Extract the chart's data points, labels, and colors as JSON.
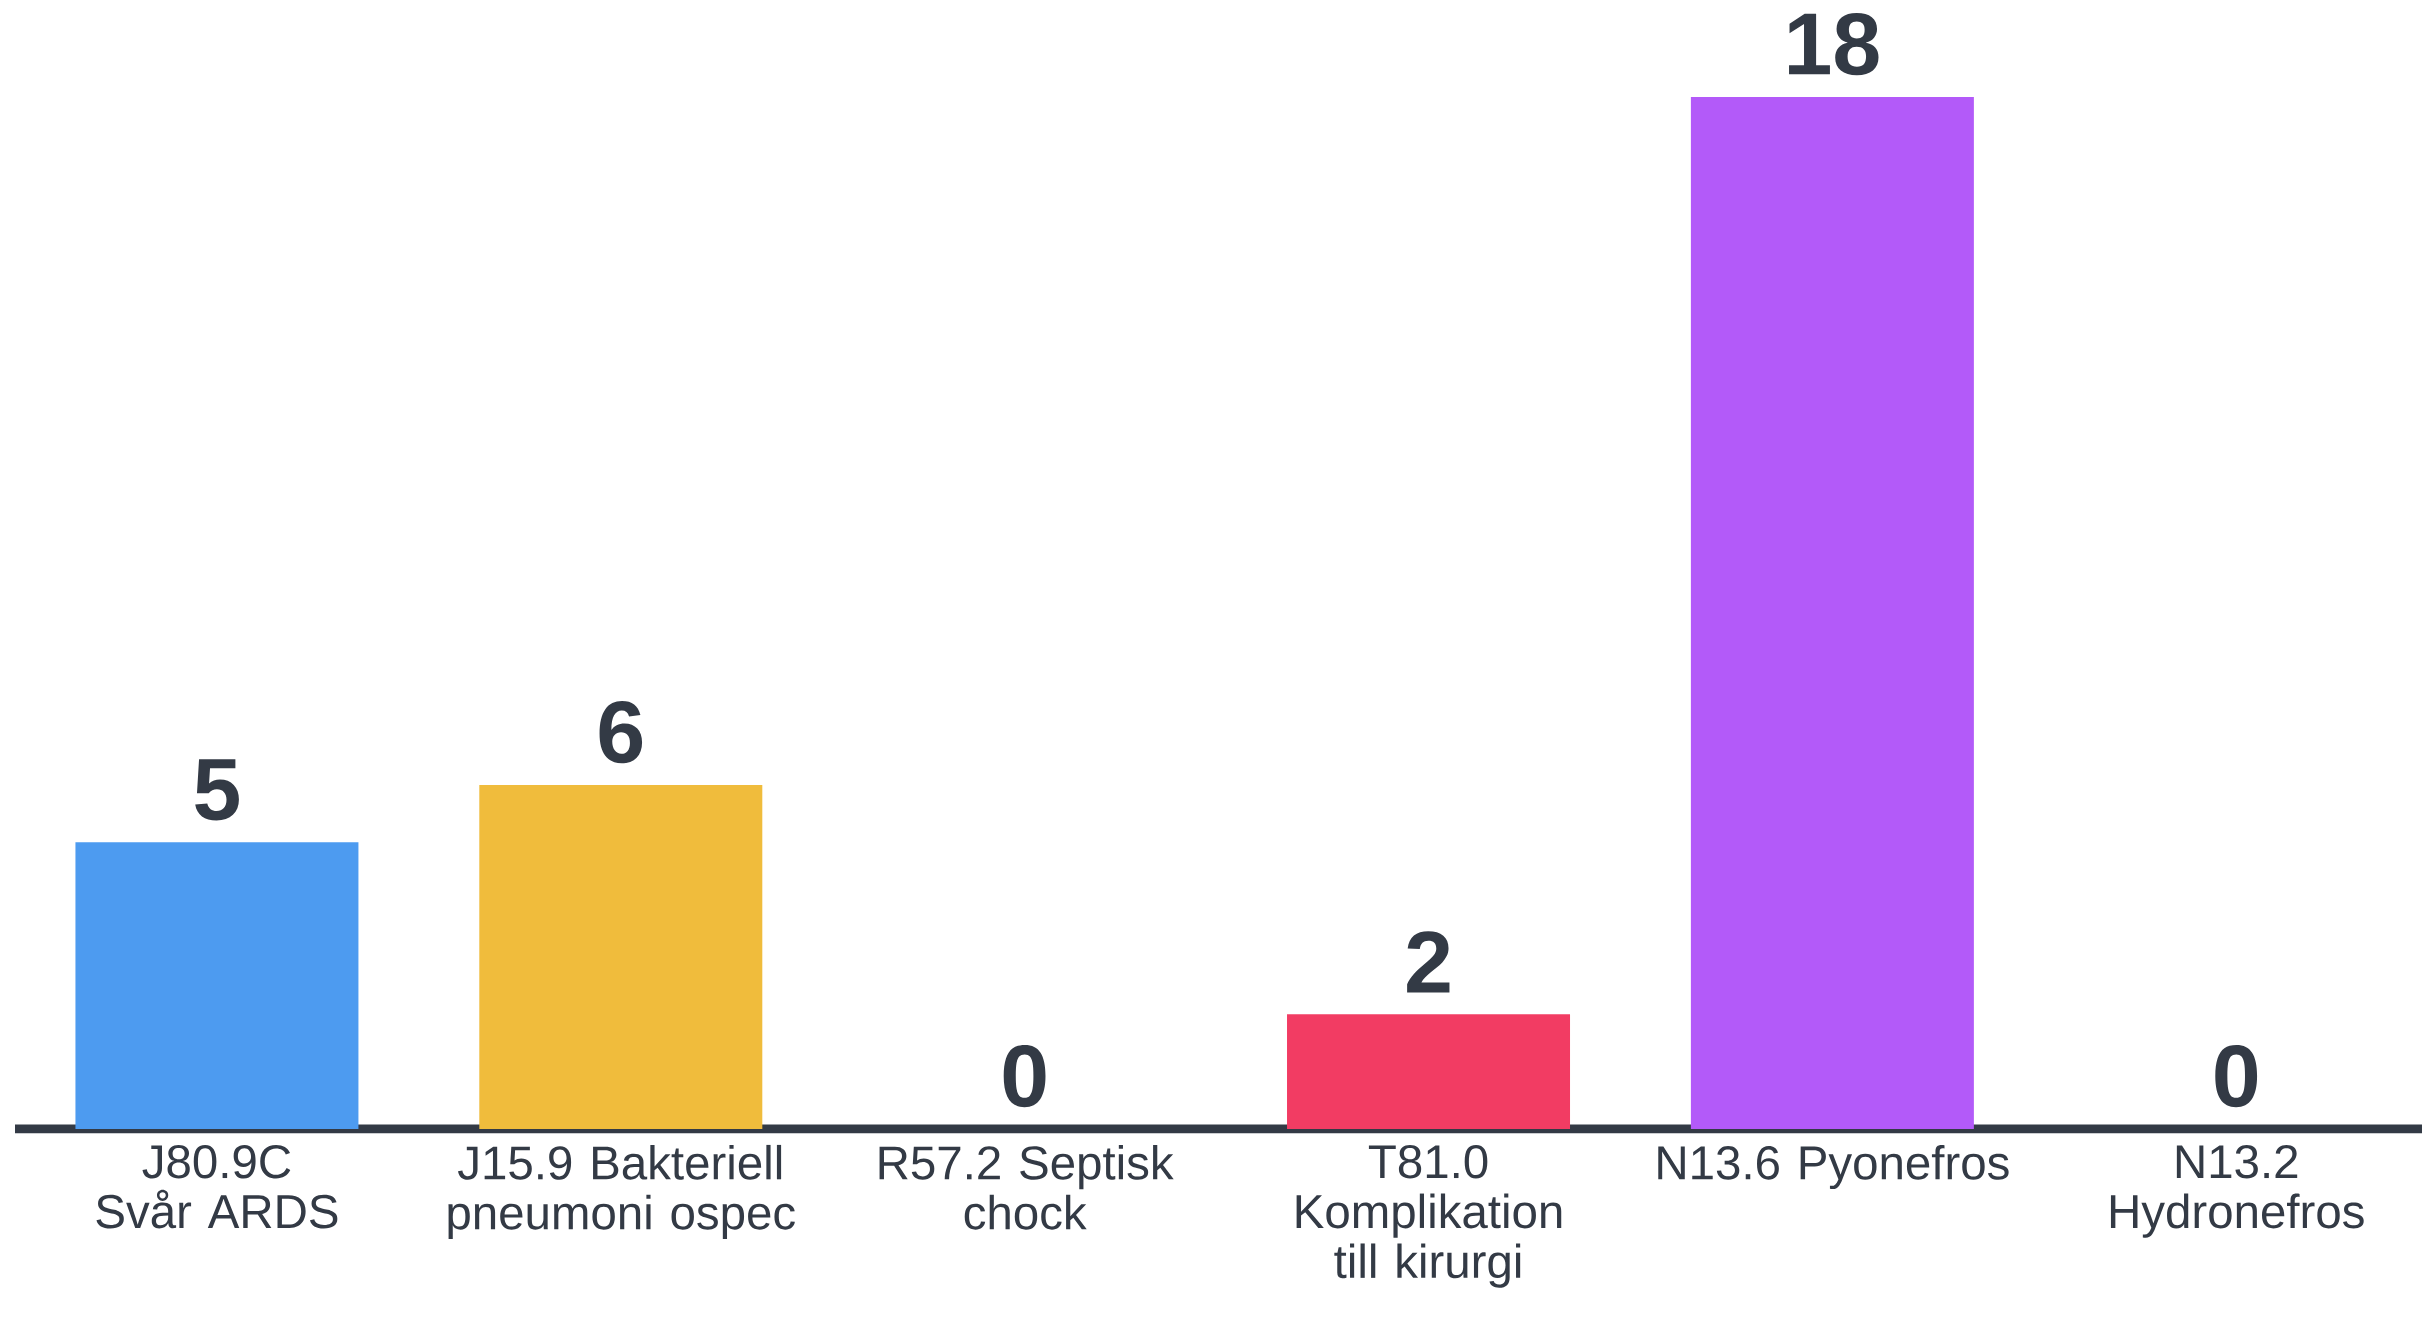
{
  "chart_data": {
    "type": "bar",
    "categories": [
      "J80.9C Svår ARDS",
      "J15.9 Bakteriell pneumoni ospec",
      "R57.2 Septisk chock",
      "T81.0 Komplikation till kirurgi",
      "N13.6 Pyonefros",
      "N13.2 Hydronefros"
    ],
    "values": [
      5,
      6,
      0,
      2,
      18,
      0
    ],
    "colors": [
      "#4d9bf0",
      "#f0bc3c",
      "#4d9bf0",
      "#f23c63",
      "#b35af9",
      "#4d9bf0"
    ],
    "data_labels": true
  }
}
